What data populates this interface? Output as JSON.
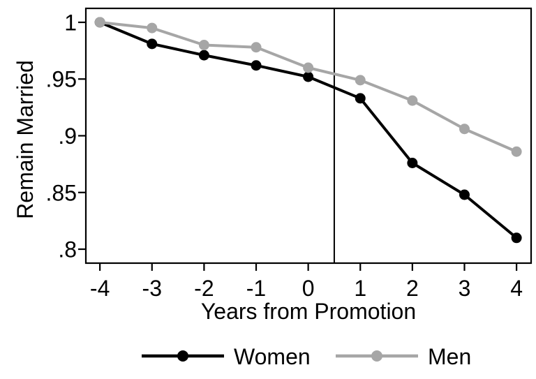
{
  "figure": {
    "background": "#ffffff",
    "axis_color": "#000000",
    "text_color": "#000000"
  },
  "chart_data": {
    "type": "line",
    "title": "",
    "xlabel": "Years from Promotion",
    "ylabel": "Remain Married",
    "x": [
      -4,
      -3,
      -2,
      -1,
      0,
      1,
      2,
      3,
      4
    ],
    "series": [
      {
        "name": "Women",
        "color": "#000000",
        "values": [
          1.0,
          0.981,
          0.971,
          0.962,
          0.952,
          0.933,
          0.876,
          0.848,
          0.81
        ]
      },
      {
        "name": "Men",
        "color": "#a6a6a6",
        "values": [
          1.0,
          0.995,
          0.98,
          0.978,
          0.96,
          0.949,
          0.931,
          0.906,
          0.886
        ]
      }
    ],
    "x_ticks": [
      -4,
      -3,
      -2,
      -1,
      0,
      1,
      2,
      3,
      4
    ],
    "x_tick_labels": [
      "-4",
      "-3",
      "-2",
      "-1",
      "0",
      "1",
      "2",
      "3",
      "4"
    ],
    "y_ticks": [
      0.8,
      0.85,
      0.9,
      0.95,
      1.0
    ],
    "y_tick_labels": [
      ".8",
      ".85",
      ".9",
      ".95",
      "1"
    ],
    "xlim": [
      -4.27,
      4.28
    ],
    "ylim": [
      0.7877,
      1.0123
    ],
    "ref_line_x": 0.5,
    "grid": false,
    "legend_position": "bottom",
    "marker": "circle"
  }
}
